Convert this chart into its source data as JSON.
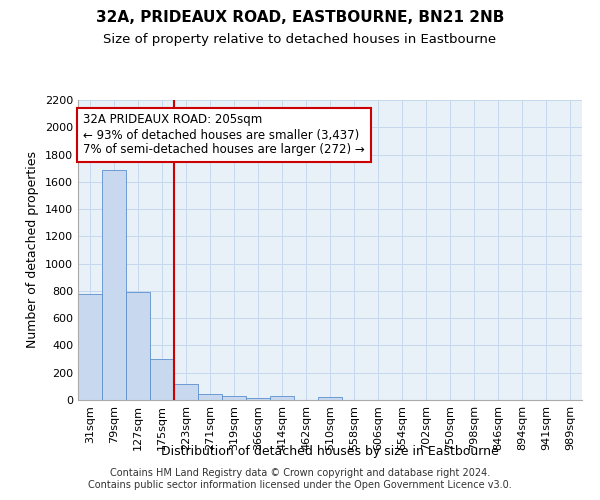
{
  "title": "32A, PRIDEAUX ROAD, EASTBOURNE, BN21 2NB",
  "subtitle": "Size of property relative to detached houses in Eastbourne",
  "xlabel": "Distribution of detached houses by size in Eastbourne",
  "ylabel": "Number of detached properties",
  "bar_labels": [
    "31sqm",
    "79sqm",
    "127sqm",
    "175sqm",
    "223sqm",
    "271sqm",
    "319sqm",
    "366sqm",
    "414sqm",
    "462sqm",
    "510sqm",
    "558sqm",
    "606sqm",
    "654sqm",
    "702sqm",
    "750sqm",
    "798sqm",
    "846sqm",
    "894sqm",
    "941sqm",
    "989sqm"
  ],
  "bar_values": [
    775,
    1685,
    795,
    300,
    115,
    45,
    30,
    15,
    30,
    0,
    20,
    0,
    0,
    0,
    0,
    0,
    0,
    0,
    0,
    0,
    0
  ],
  "bar_color": "#c8d9ef",
  "bar_edge_color": "#5b8fcc",
  "grid_color": "#c5d8ee",
  "background_color": "#e8f0f8",
  "vline_x": 4.0,
  "vline_color": "#cc0000",
  "annotation_text": "32A PRIDEAUX ROAD: 205sqm\n← 93% of detached houses are smaller (3,437)\n7% of semi-detached houses are larger (272) →",
  "annotation_box_color": "white",
  "annotation_box_edge": "#cc0000",
  "ylim": [
    0,
    2200
  ],
  "yticks": [
    0,
    200,
    400,
    600,
    800,
    1000,
    1200,
    1400,
    1600,
    1800,
    2000,
    2200
  ],
  "footer": "Contains HM Land Registry data © Crown copyright and database right 2024.\nContains public sector information licensed under the Open Government Licence v3.0.",
  "title_fontsize": 11,
  "subtitle_fontsize": 9.5,
  "xlabel_fontsize": 9,
  "ylabel_fontsize": 9,
  "tick_fontsize": 8,
  "annotation_fontsize": 8.5,
  "footer_fontsize": 7
}
